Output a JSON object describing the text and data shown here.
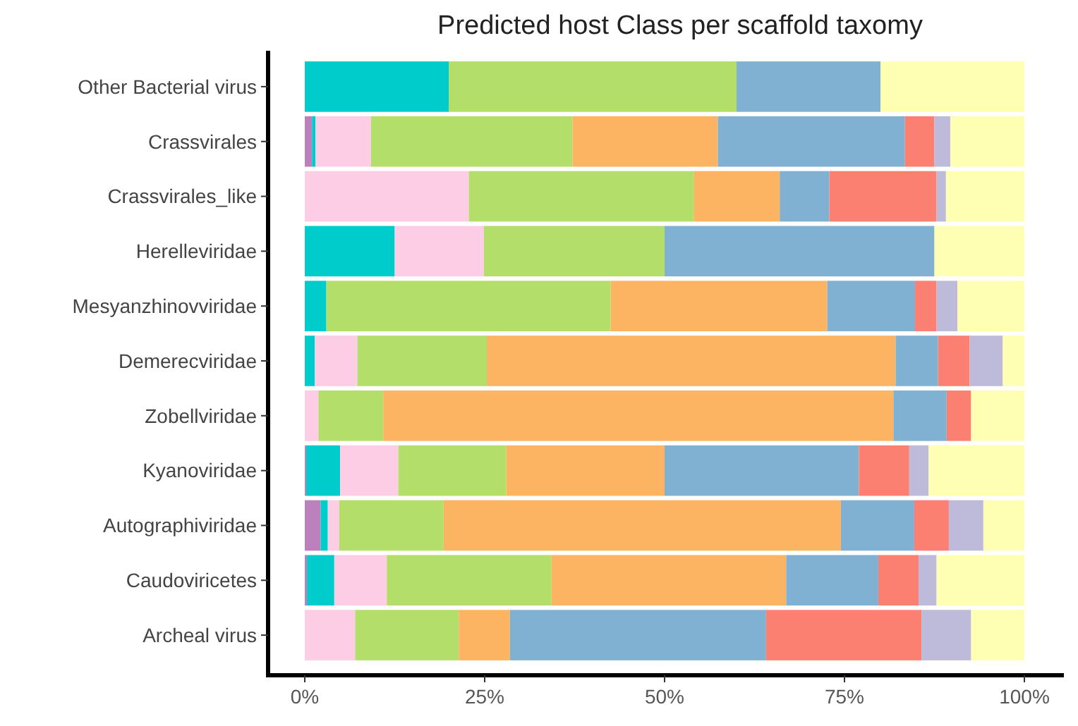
{
  "chart_data": {
    "type": "bar",
    "orientation": "horizontal",
    "stacked": true,
    "title": "Predicted host Class per scaffold taxomy",
    "categories": [
      "Other Bacterial virus",
      "Crassvirales",
      "Crassvirales_like",
      "Herelleviridae",
      "Mesyanzhinovviridae",
      "Demerecviridae",
      "Zobellviridae",
      "Kyanoviridae",
      "Autographiviridae",
      "Caudoviricetes",
      "Archeal virus"
    ],
    "series": [
      {
        "color": "#bc80bd",
        "values": [
          0,
          1.0,
          0,
          0,
          0,
          0,
          0,
          0.2,
          2.2,
          0.3,
          0
        ]
      },
      {
        "color": "#00cccc",
        "values": [
          20,
          0.5,
          0,
          12.5,
          3.0,
          1.4,
          0,
          4.7,
          1.0,
          3.8,
          0
        ]
      },
      {
        "color": "#fccde5",
        "values": [
          0,
          7.7,
          22.8,
          12.4,
          0,
          5.9,
          1.9,
          8.1,
          1.6,
          7.3,
          7.0
        ]
      },
      {
        "color": "#b3de69",
        "values": [
          40,
          28,
          31.3,
          25.1,
          39.5,
          18.0,
          9.0,
          15.0,
          14.5,
          22.9,
          14.4
        ]
      },
      {
        "color": "#fdb462",
        "values": [
          0,
          20.2,
          11.9,
          0,
          30.1,
          56.8,
          70.9,
          22.0,
          55.2,
          32.6,
          7.1
        ]
      },
      {
        "color": "#80b1d3",
        "values": [
          20,
          26,
          6.9,
          37.5,
          12.2,
          5.9,
          7.4,
          27.0,
          10.2,
          12.8,
          35.6
        ]
      },
      {
        "color": "#fb8072",
        "values": [
          0,
          4.1,
          14.9,
          0,
          3.0,
          4.4,
          3.4,
          7.0,
          4.8,
          5.6,
          21.6
        ]
      },
      {
        "color": "#bebada",
        "values": [
          0,
          2.2,
          1.3,
          0,
          2.9,
          4.6,
          0,
          2.7,
          4.8,
          2.5,
          6.9
        ]
      },
      {
        "color": "#ffffb3",
        "values": [
          20,
          10.3,
          10.9,
          12.5,
          9.3,
          3.0,
          7.4,
          13.3,
          5.7,
          12.2,
          7.4
        ]
      }
    ],
    "xlim": [
      0,
      100
    ],
    "xticks": [
      {
        "value": 0,
        "label": "0%"
      },
      {
        "value": 25,
        "label": "25%"
      },
      {
        "value": 50,
        "label": "50%"
      },
      {
        "value": 75,
        "label": "75%"
      },
      {
        "value": 100,
        "label": "100%"
      }
    ],
    "grid": false
  }
}
